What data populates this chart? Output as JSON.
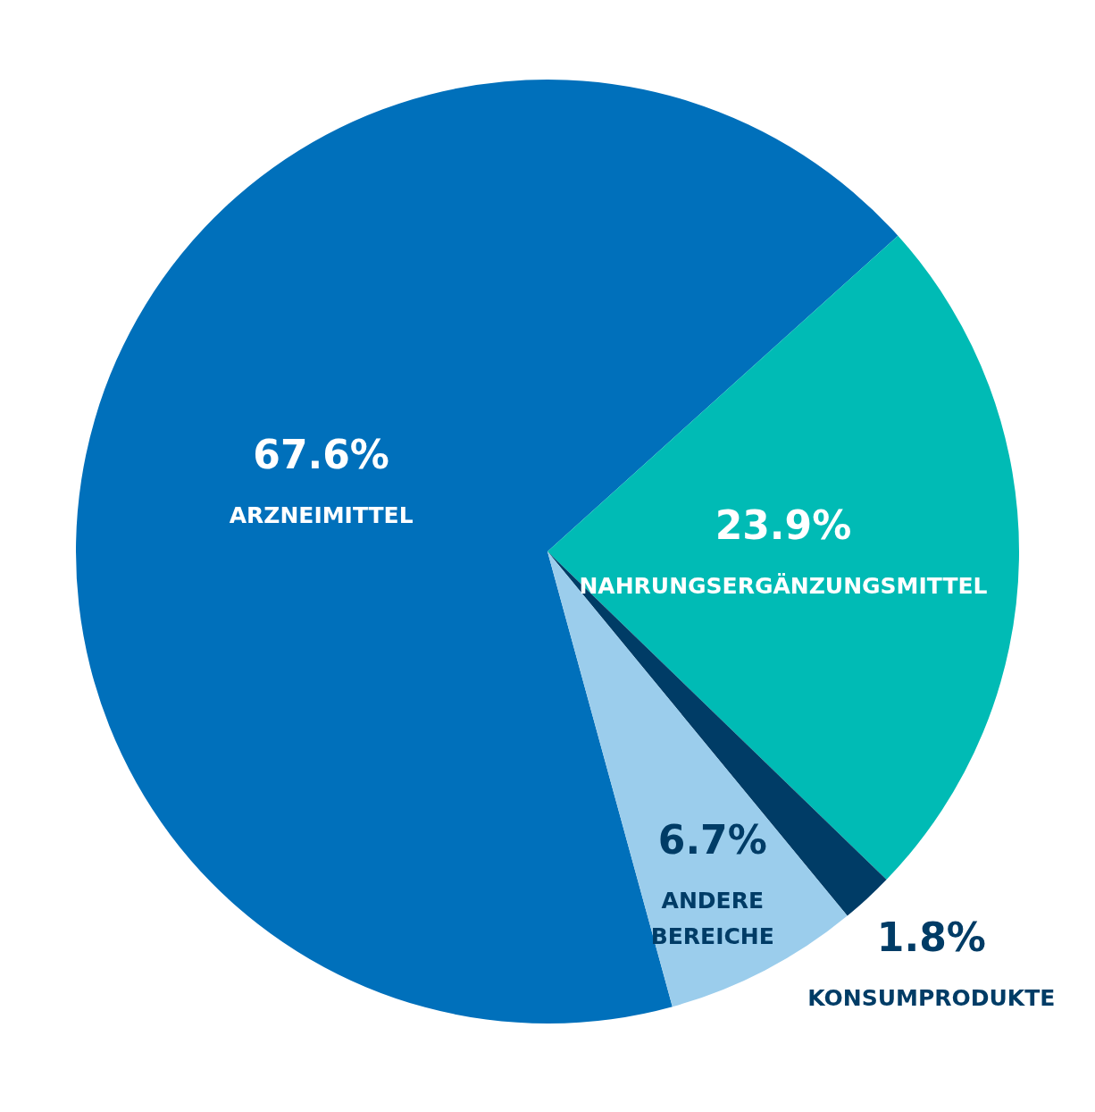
{
  "chart_data": {
    "type": "pie",
    "categories": [
      "ARZNEIMITTEL",
      "NAHRUNGSERGÄNZUNGSMITTEL",
      "KONSUMPRODUKTE",
      "ANDERE BEREICHE"
    ],
    "values": [
      67.6,
      23.9,
      1.8,
      6.7
    ],
    "colors": [
      "#0070bb",
      "#00bbb5",
      "#003c66",
      "#9bcdec"
    ],
    "value_labels": [
      "67.6%",
      "23.9%",
      "1.8%",
      "6.7%"
    ],
    "legend": false
  }
}
